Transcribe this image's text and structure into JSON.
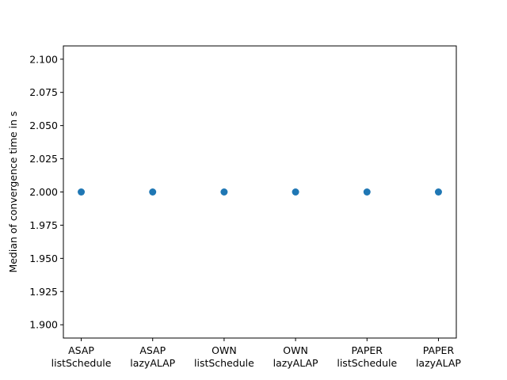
{
  "chart_data": {
    "type": "scatter",
    "title": "",
    "xlabel": "",
    "ylabel": "Median of convergence time in s",
    "categories": [
      [
        "ASAP",
        "listSchedule"
      ],
      [
        "ASAP",
        "lazyALAP"
      ],
      [
        "OWN",
        "listSchedule"
      ],
      [
        "OWN",
        "lazyALAP"
      ],
      [
        "PAPER",
        "listSchedule"
      ],
      [
        "PAPER",
        "lazyALAP"
      ]
    ],
    "values": [
      2.0,
      2.0,
      2.0,
      2.0,
      2.0,
      2.0
    ],
    "ylim": [
      1.89,
      2.11
    ],
    "yticks": [
      1.9,
      1.925,
      1.95,
      1.975,
      2.0,
      2.025,
      2.05,
      2.075,
      2.1
    ],
    "ytick_labels": [
      "1.900",
      "1.925",
      "1.950",
      "1.975",
      "2.000",
      "2.025",
      "2.050",
      "2.075",
      "2.100"
    ],
    "grid": false,
    "legend": "none",
    "marker_color": "#1f77b4"
  }
}
